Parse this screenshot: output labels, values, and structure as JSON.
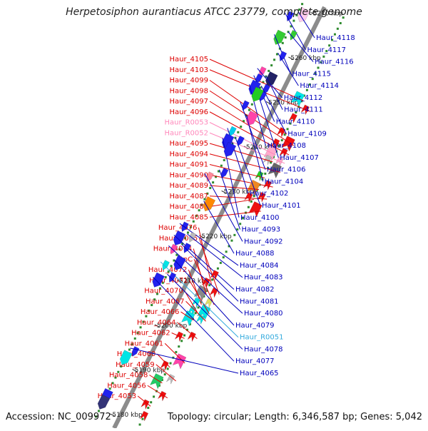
{
  "title": "Herpetosiphon aurantiacus ATCC 23779, complete genome",
  "accession": "Accession: NC_009972",
  "summary": "Topology: circular; Length: 6,346,587 bp; Genes: 5,042",
  "colors": {
    "background": "#ffffff",
    "axis": "#8c8c8c",
    "tick": "#2e8b2e",
    "left_label": "#dd0000",
    "right_label": "#0000bb",
    "rna_label_left": "#ff88bb",
    "rna_label_right": "#33aadd"
  },
  "scale_labels": [
    {
      "text": "5270 kbp",
      "kbp": 5270
    },
    {
      "text": "5260 kbp",
      "kbp": 5260
    },
    {
      "text": "5250 kbp",
      "kbp": 5250
    },
    {
      "text": "5240 kbp",
      "kbp": 5240
    },
    {
      "text": "5230 kbp",
      "kbp": 5230
    },
    {
      "text": "5220 kbp",
      "kbp": 5220
    },
    {
      "text": "5210 kbp",
      "kbp": 5210
    },
    {
      "text": "5200 kbp",
      "kbp": 5200
    },
    {
      "text": "5190 kbp",
      "kbp": 5190
    },
    {
      "text": "5180 kbp",
      "kbp": 5180
    }
  ],
  "left_genes": [
    {
      "label": "Haur_4105",
      "kbp": 5253.5,
      "kind": "cds",
      "color": "#00e5e5"
    },
    {
      "label": "Haur_4103",
      "kbp": 5252.2,
      "kind": "cds",
      "color": "#ee1111"
    },
    {
      "label": "Haur_4099",
      "kbp": 5246.0,
      "kind": "cds",
      "color": "#ee1111"
    },
    {
      "label": "Haur_4098",
      "kbp": 5244.6,
      "kind": "cds",
      "color": "#ee1111"
    },
    {
      "label": "Haur_4097",
      "kbp": 5243.5,
      "kind": "cds",
      "color": "#ee1111"
    },
    {
      "label": "Haur_4096",
      "kbp": 5242.5,
      "kind": "cds",
      "color": "#ee1111"
    },
    {
      "label": "Haur_R0053",
      "kbp": 5241.3,
      "kind": "rna",
      "color": "#ffaacc"
    },
    {
      "label": "Haur_R0052",
      "kbp": 5240.6,
      "kind": "rna",
      "color": "#ffaacc"
    },
    {
      "label": "Haur_4095",
      "kbp": 5239.8,
      "kind": "cds",
      "color": "#bbbbbb"
    },
    {
      "label": "Haur_4094",
      "kbp": 5238.6,
      "kind": "cds",
      "color": "#666666"
    },
    {
      "label": "Haur_4091",
      "kbp": 5236.2,
      "kind": "cds",
      "color": "#22cc22"
    },
    {
      "label": "Haur_4090",
      "kbp": 5235.3,
      "kind": "cds",
      "color": "#ee1111"
    },
    {
      "label": "Haur_4089",
      "kbp": 5233.6,
      "kind": "cds",
      "color": "#ee8822"
    },
    {
      "label": "Haur_4087",
      "kbp": 5232.6,
      "kind": "cds",
      "color": "#ee1111"
    },
    {
      "label": "Haur_4086",
      "kbp": 5231.4,
      "kind": "cds",
      "color": "#ee1111"
    },
    {
      "label": "Haur_4085",
      "kbp": 5229.9,
      "kind": "cds",
      "color": "#ee1111"
    },
    {
      "label": "Haur_4076",
      "kbp": 5212.3,
      "kind": "cds",
      "color": "#ee1111"
    },
    {
      "label": "Haur_4075",
      "kbp": 5211.2,
      "kind": "cds",
      "color": "#ee1111"
    },
    {
      "label": "Haur_4074",
      "kbp": 5210.0,
      "kind": "cds",
      "color": "#888888"
    },
    {
      "label": "atpC",
      "kbp": 5208.9,
      "kind": "cds",
      "color": "#dddd66"
    },
    {
      "label": "Haur_4072",
      "kbp": 5207.8,
      "kind": "cds",
      "color": "#00e5e5"
    },
    {
      "label": "Haur_4071",
      "kbp": 5206.8,
      "kind": "cds",
      "color": "#00e5e5"
    },
    {
      "label": "Haur_4070",
      "kbp": 5206.0,
      "kind": "cds",
      "color": "#00e5e5"
    },
    {
      "label": "Haur_4067",
      "kbp": 5205.2,
      "kind": "cds",
      "color": "#00e5e5"
    },
    {
      "label": "Haur_4066",
      "kbp": 5204.3,
      "kind": "cds",
      "color": "#00e5e5"
    },
    {
      "label": "Haur_4064",
      "kbp": 5201.3,
      "kind": "cds",
      "color": "#ee1111"
    },
    {
      "label": "Haur_4062",
      "kbp": 5200.2,
      "kind": "cds",
      "color": "#ee1111"
    },
    {
      "label": "Haur_4061",
      "kbp": 5195.8,
      "kind": "cds",
      "color": "#ff44aa"
    },
    {
      "label": "Haur_4060",
      "kbp": 5193.7,
      "kind": "cds",
      "color": "#ee1111"
    },
    {
      "label": "Haur_4059",
      "kbp": 5191.8,
      "kind": "cds",
      "color": "#bbbbbb"
    },
    {
      "label": "Haur_4058",
      "kbp": 5190.2,
      "kind": "cds",
      "color": "#22cc66"
    },
    {
      "label": "Haur_4056",
      "kbp": 5188.0,
      "kind": "cds",
      "color": "#ee1111"
    },
    {
      "label": "Haur_4053",
      "kbp": 5185.0,
      "kind": "cds",
      "color": "#ee1111"
    }
  ],
  "right_genes": [
    {
      "label": "Haur_4118",
      "kbp": 5269.0,
      "kind": "cds",
      "color": "#ffccee"
    },
    {
      "label": "Haur_4117",
      "kbp": 5267.6,
      "kind": "cds",
      "color": "#2222ee"
    },
    {
      "label": "Haur_4116",
      "kbp": 5264.5,
      "kind": "cds",
      "color": "#33cc33"
    },
    {
      "label": "Haur_4115",
      "kbp": 5262.8,
      "kind": "cds",
      "color": "#33cc33"
    },
    {
      "label": "Haur_4114",
      "kbp": 5259.8,
      "kind": "cds",
      "color": "#2222ee"
    },
    {
      "label": "Haur_4112",
      "kbp": 5255.2,
      "kind": "cds",
      "color": "#ff44aa"
    },
    {
      "label": "Haur_4111",
      "kbp": 5254.6,
      "kind": "cds",
      "color": "#222266"
    },
    {
      "label": "Haur_4110",
      "kbp": 5253.6,
      "kind": "cds",
      "color": "#2222ee"
    },
    {
      "label": "Haur_4109",
      "kbp": 5252.4,
      "kind": "cds",
      "color": "#2222ee"
    },
    {
      "label": "Haur_4108",
      "kbp": 5251.6,
      "kind": "cds",
      "color": "#2222ee"
    },
    {
      "label": "Haur_4107",
      "kbp": 5250.8,
      "kind": "cds",
      "color": "#2222ee"
    },
    {
      "label": "Haur_4106",
      "kbp": 5247.6,
      "kind": "cds",
      "color": "#2222ee"
    },
    {
      "label": "Haur_4104",
      "kbp": 5245.8,
      "kind": "cds",
      "color": "#ff44aa"
    },
    {
      "label": "Haur_4102",
      "kbp": 5241.8,
      "kind": "cds",
      "color": "#00ccee"
    },
    {
      "label": "Haur_4101",
      "kbp": 5240.8,
      "kind": "cds",
      "color": "#2222ee"
    },
    {
      "label": "Haur_4100",
      "kbp": 5239.6,
      "kind": "cds",
      "color": "#2222ee"
    },
    {
      "label": "Haur_4093",
      "kbp": 5233.6,
      "kind": "cds",
      "color": "#2222ee"
    },
    {
      "label": "Haur_4092",
      "kbp": 5231.6,
      "kind": "cds",
      "color": "#ff8899"
    },
    {
      "label": "Haur_4088",
      "kbp": 5226.6,
      "kind": "cds",
      "color": "#ff8800"
    },
    {
      "label": "Haur_4084",
      "kbp": 5220.4,
      "kind": "cds",
      "color": "#2222ee"
    },
    {
      "label": "Haur_4083",
      "kbp": 5219.2,
      "kind": "cds",
      "color": "#bbbbbb"
    },
    {
      "label": "Haur_4082",
      "kbp": 5217.8,
      "kind": "cds",
      "color": "#2222ee"
    },
    {
      "label": "Haur_4081",
      "kbp": 5216.8,
      "kind": "cds",
      "color": "#2222ee"
    },
    {
      "label": "Haur_4080",
      "kbp": 5215.4,
      "kind": "cds",
      "color": "#ff44aa"
    },
    {
      "label": "Haur_4079",
      "kbp": 5213.4,
      "kind": "cds",
      "color": "#2222ee"
    },
    {
      "label": "Haur_R0051",
      "kbp": 5211.8,
      "kind": "rna",
      "color": "#00e5e5"
    },
    {
      "label": "Haur_4078",
      "kbp": 5210.2,
      "kind": "cds",
      "color": "#2222ee"
    },
    {
      "label": "Haur_4077",
      "kbp": 5208.4,
      "kind": "cds",
      "color": "#2222ee"
    },
    {
      "label": "Haur_4065",
      "kbp": 5193.6,
      "kind": "cds",
      "color": "#2222ee"
    }
  ],
  "extra_left_features": [
    {
      "kbp": 5249.6,
      "color": "#ee1111"
    },
    {
      "kbp": 5214.4,
      "color": "#ee1111"
    },
    {
      "kbp": 5182.8,
      "color": "#ee1111"
    }
  ],
  "extra_right_features": [
    {
      "kbp": 5250.6,
      "color": "#22cc22"
    },
    {
      "kbp": 5238.2,
      "color": "#2222ee"
    },
    {
      "kbp": 5191.6,
      "color": "#00e5e5"
    },
    {
      "kbp": 5183.0,
      "color": "#2222ee"
    },
    {
      "kbp": 5181.6,
      "color": "#333377"
    }
  ]
}
